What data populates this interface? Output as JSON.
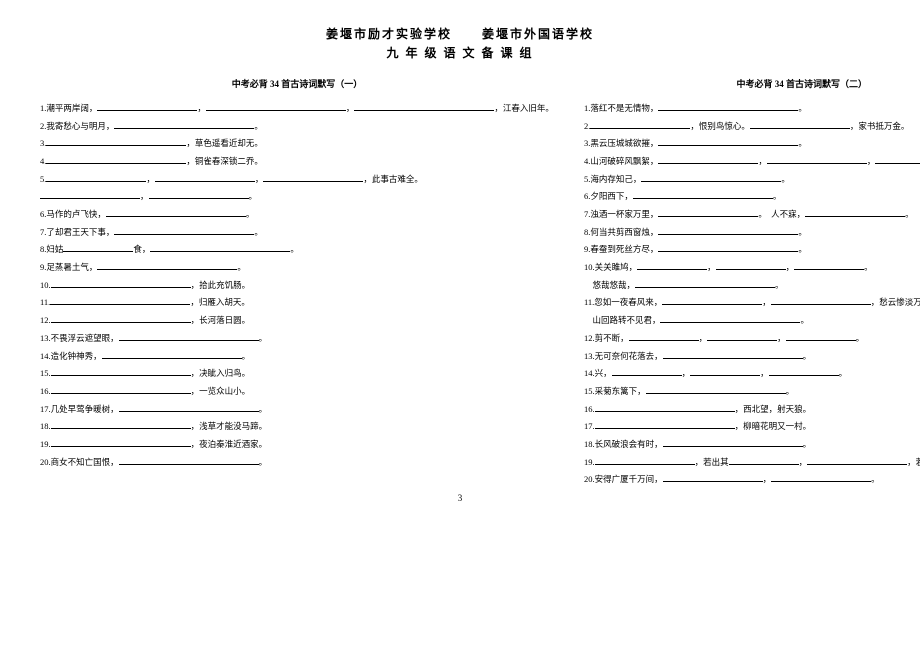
{
  "header": {
    "line1": "姜堰市励才实验学校      姜堰市外国语学校",
    "line2": "九 年 级 语 文 备 课 组"
  },
  "left": {
    "title": "中考必背 34 首古诗词默写（一）",
    "items": [
      {
        "n": "1",
        "pre": "潮平两岸阔，",
        "blanks": [
          "med",
          "long",
          "long"
        ],
        "post": "，江春入旧年。"
      },
      {
        "n": "2",
        "pre": "我寄愁心与明月，",
        "blanks": [
          "long"
        ],
        "post": "。"
      },
      {
        "n": "3",
        "pre": "",
        "blanks": [
          "long"
        ],
        "post": "，草色遥看近却无。"
      },
      {
        "n": "4",
        "pre": "",
        "blanks": [
          "long"
        ],
        "post": "，铜雀春深锁二乔。"
      },
      {
        "n": "5",
        "pre": "",
        "blanks": [
          "med",
          "med",
          "med"
        ],
        "post": "，此事古难全。"
      },
      {
        "n": "",
        "pre": "",
        "blanks": [
          "med",
          "med"
        ],
        "post": "。"
      },
      {
        "n": "6",
        "pre": "马作的卢飞快，",
        "blanks": [
          "long"
        ],
        "post": "。"
      },
      {
        "n": "7",
        "pre": "了却君王天下事，",
        "blanks": [
          "long"
        ],
        "post": "。"
      },
      {
        "n": "8",
        "pre": "妇姑",
        "blanks": [
          "short"
        ],
        "post": "食，",
        "blanks2": [
          "long"
        ],
        "post2": "。"
      },
      {
        "n": "9",
        "pre": "足蒸暑土气，",
        "blanks": [
          "long"
        ],
        "post": "。"
      },
      {
        "n": "10",
        "pre": "",
        "blanks": [
          "long"
        ],
        "post": "，拾此充饥肠。"
      },
      {
        "n": "11",
        "pre": "",
        "blanks": [
          "long"
        ],
        "post": "，归雁入胡天。"
      },
      {
        "n": "12",
        "pre": "",
        "blanks": [
          "long"
        ],
        "post": "，长河落日圆。"
      },
      {
        "n": "13",
        "pre": "不畏浮云遮望眼，",
        "blanks": [
          "long"
        ],
        "post": "。"
      },
      {
        "n": "14",
        "pre": "造化钟神秀，",
        "blanks": [
          "long"
        ],
        "post": "。"
      },
      {
        "n": "15",
        "pre": "",
        "blanks": [
          "long"
        ],
        "post": "，决眦入归鸟。"
      },
      {
        "n": "16",
        "pre": "",
        "blanks": [
          "long"
        ],
        "post": "，一览众山小。"
      },
      {
        "n": "17",
        "pre": "几处早莺争暖树，",
        "blanks": [
          "long"
        ],
        "post": "。"
      },
      {
        "n": "18",
        "pre": "",
        "blanks": [
          "long"
        ],
        "post": "，浅草才能没马蹄。"
      },
      {
        "n": "19",
        "pre": "",
        "blanks": [
          "long"
        ],
        "post": "，夜泊秦淮近酒家。"
      },
      {
        "n": "20",
        "pre": "商女不知亡国恨，",
        "blanks": [
          "long"
        ],
        "post": "。"
      }
    ]
  },
  "right": {
    "title": "中考必背 34 首古诗词默写（二）",
    "items": [
      {
        "n": "1",
        "pre": "落红不是无情物，",
        "blanks": [
          "long"
        ],
        "post": "。"
      },
      {
        "n": "2",
        "pre": "",
        "blanks": [
          "med"
        ],
        "post": "，恨别鸟惊心。",
        "blanks2": [
          "med"
        ],
        "post2": "，家书抵万金。"
      },
      {
        "n": "3",
        "pre": "黑云压城城欲摧，",
        "blanks": [
          "long"
        ],
        "post": "。"
      },
      {
        "n": "4",
        "pre": "山河破碎风飘絮，",
        "blanks": [
          "med",
          "med",
          "med"
        ],
        "post": "。"
      },
      {
        "n": "5",
        "pre": "海内存知己，",
        "blanks": [
          "long"
        ],
        "post": "。"
      },
      {
        "n": "6",
        "pre": "夕阳西下，",
        "blanks": [
          "long"
        ],
        "post": "。"
      },
      {
        "n": "7",
        "pre": "浊酒一杯家万里，",
        "blanks": [
          "med"
        ],
        "post": "。　人不寐，",
        "blanks2": [
          "med"
        ],
        "post2": "。"
      },
      {
        "n": "8",
        "pre": "何当共剪西窗烛，",
        "blanks": [
          "long"
        ],
        "post": "。"
      },
      {
        "n": "9",
        "pre": "春蚕到死丝方尽，",
        "blanks": [
          "long"
        ],
        "post": "。"
      },
      {
        "n": "10",
        "pre": "关关雎鸠，",
        "blanks": [
          "short",
          "short",
          "short"
        ],
        "post": "。"
      },
      {
        "n": "",
        "pre": "　悠哉悠哉，",
        "blanks": [
          "long"
        ],
        "post": "。"
      },
      {
        "n": "11",
        "pre": "忽如一夜春风来，",
        "blanks": [
          "med",
          "med"
        ],
        "post": "，愁云惨淡万里凝。"
      },
      {
        "n": "",
        "pre": "　山回路转不见君，",
        "blanks": [
          "long"
        ],
        "post": "。"
      },
      {
        "n": "12",
        "pre": "剪不断，",
        "blanks": [
          "short",
          "short",
          "short"
        ],
        "post": "。"
      },
      {
        "n": "13",
        "pre": "无可奈何花落去，",
        "blanks": [
          "long"
        ],
        "post": "。"
      },
      {
        "n": "14",
        "pre": "兴，",
        "blanks": [
          "short",
          "short",
          "short"
        ],
        "post": "。"
      },
      {
        "n": "15",
        "pre": "采菊东篱下，",
        "blanks": [
          "long"
        ],
        "post": "。"
      },
      {
        "n": "16",
        "pre": "",
        "blanks": [
          "long"
        ],
        "post": "，西北望，射天狼。"
      },
      {
        "n": "17",
        "pre": "",
        "blanks": [
          "long"
        ],
        "post": "，柳暗花明又一村。"
      },
      {
        "n": "18",
        "pre": "长风破浪会有时，",
        "blanks": [
          "long"
        ],
        "post": "。"
      },
      {
        "n": "19",
        "pre": "",
        "blanks": [
          "med"
        ],
        "post": "，若出其",
        "blanks2": [
          "short",
          "med"
        ],
        "post2": "，若出其",
        "blanks3": [
          "short"
        ],
        "post3": "。"
      },
      {
        "n": "20",
        "pre": "安得广厦千万间，",
        "blanks": [
          "med",
          "med"
        ],
        "post": "。"
      }
    ]
  },
  "pagenum": "3"
}
